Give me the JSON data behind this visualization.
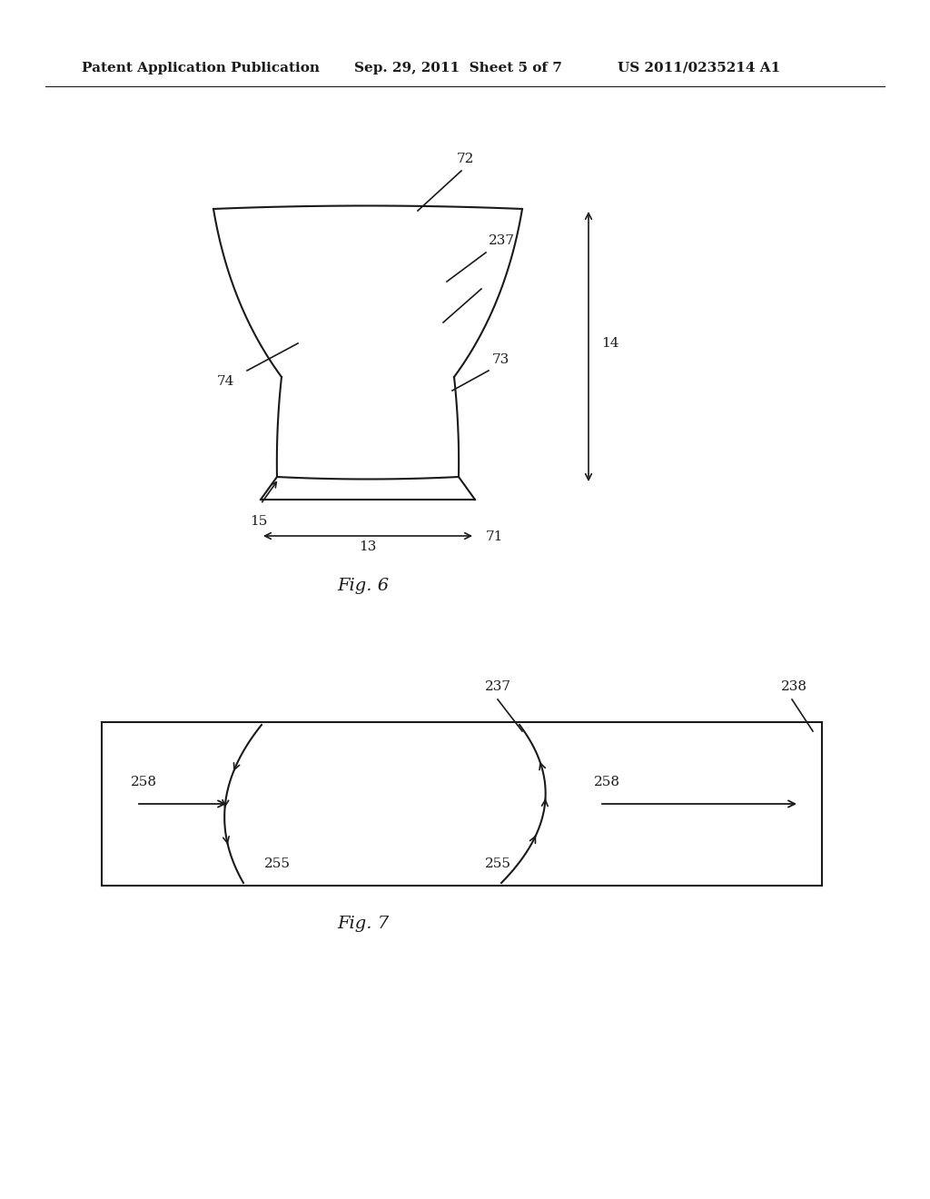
{
  "bg_color": "#ffffff",
  "header_left": "Patent Application Publication",
  "header_mid": "Sep. 29, 2011  Sheet 5 of 7",
  "header_right": "US 2011/0235214 A1",
  "fig6_caption": "Fig. 6",
  "fig7_caption": "Fig. 7",
  "label_72": "72",
  "label_74": "74",
  "label_73": "73",
  "label_237_fig6": "237",
  "label_14": "14",
  "label_15": "15",
  "label_13": "13",
  "label_71": "71",
  "label_237_fig7": "237",
  "label_238": "238",
  "label_258_left": "258",
  "label_258_right": "258",
  "label_255_left": "255",
  "label_255_right": "255",
  "line_color": "#1a1a1a",
  "text_color": "#1a1a1a"
}
